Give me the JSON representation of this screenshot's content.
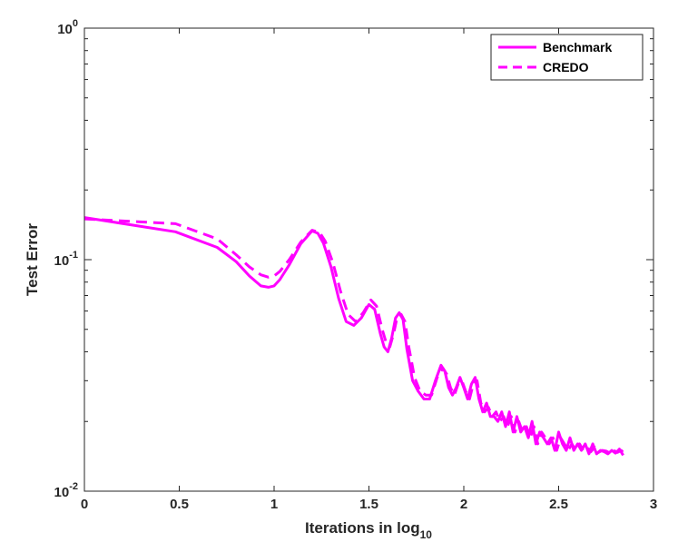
{
  "chart_data": {
    "type": "line",
    "xlabel": "Iterations in log",
    "xlabel_subscript": "10",
    "ylabel": "Test Error",
    "xlim": [
      0,
      3
    ],
    "ylim": [
      0.01,
      1
    ],
    "yscale": "log",
    "grid": false,
    "legend_position": "top-right",
    "x_ticks": [
      0,
      0.5,
      1,
      1.5,
      2,
      2.5,
      3
    ],
    "x_tick_labels": [
      "0",
      "0.5",
      "1",
      "1.5",
      "2",
      "2.5",
      "3"
    ],
    "y_ticks": [
      {
        "value": 0.01,
        "base": "10",
        "exp": "-2"
      },
      {
        "value": 0.1,
        "base": "10",
        "exp": "-1"
      },
      {
        "value": 1,
        "base": "10",
        "exp": "0"
      }
    ],
    "series": [
      {
        "name": "Benchmark",
        "style": "solid",
        "color": "#ff00ff",
        "x": [
          0,
          0.48,
          0.7,
          0.8,
          0.87,
          0.93,
          0.97,
          1.0,
          1.03,
          1.08,
          1.14,
          1.2,
          1.23,
          1.26,
          1.3,
          1.34,
          1.38,
          1.42,
          1.46,
          1.5,
          1.53,
          1.56,
          1.58,
          1.6,
          1.62,
          1.64,
          1.66,
          1.68,
          1.7,
          1.73,
          1.76,
          1.79,
          1.82,
          1.85,
          1.88,
          1.9,
          1.92,
          1.94,
          1.96,
          1.98,
          2.0,
          2.02,
          2.04,
          2.06,
          2.08,
          2.1,
          2.12,
          2.14,
          2.16,
          2.18,
          2.2,
          2.22,
          2.24,
          2.26,
          2.28,
          2.3,
          2.32,
          2.34,
          2.36,
          2.38,
          2.4,
          2.42,
          2.44,
          2.46,
          2.48,
          2.5,
          2.52,
          2.54,
          2.56,
          2.58,
          2.6,
          2.62,
          2.64,
          2.66,
          2.68,
          2.7,
          2.72,
          2.74,
          2.76,
          2.78,
          2.8,
          2.82,
          2.84
        ],
        "values": [
          0.152,
          0.132,
          0.113,
          0.098,
          0.085,
          0.077,
          0.076,
          0.077,
          0.082,
          0.095,
          0.117,
          0.133,
          0.13,
          0.118,
          0.093,
          0.068,
          0.054,
          0.052,
          0.056,
          0.064,
          0.061,
          0.048,
          0.042,
          0.04,
          0.046,
          0.056,
          0.059,
          0.055,
          0.041,
          0.03,
          0.027,
          0.025,
          0.025,
          0.03,
          0.035,
          0.033,
          0.028,
          0.026,
          0.028,
          0.031,
          0.028,
          0.025,
          0.029,
          0.031,
          0.025,
          0.022,
          0.024,
          0.021,
          0.021,
          0.02,
          0.022,
          0.019,
          0.022,
          0.018,
          0.021,
          0.018,
          0.019,
          0.017,
          0.02,
          0.016,
          0.018,
          0.017,
          0.016,
          0.017,
          0.015,
          0.018,
          0.016,
          0.015,
          0.017,
          0.015,
          0.016,
          0.015,
          0.016,
          0.0145,
          0.016,
          0.0145,
          0.015,
          0.0148,
          0.0145,
          0.015,
          0.0146,
          0.0152,
          0.0143
        ]
      },
      {
        "name": "CREDO",
        "style": "dashed",
        "color": "#ff00ff",
        "x": [
          0,
          0.48,
          0.7,
          0.8,
          0.87,
          0.93,
          0.97,
          1.0,
          1.03,
          1.08,
          1.14,
          1.2,
          1.24,
          1.27,
          1.31,
          1.35,
          1.39,
          1.43,
          1.47,
          1.51,
          1.54,
          1.57,
          1.59,
          1.61,
          1.63,
          1.65,
          1.67,
          1.69,
          1.71,
          1.74,
          1.77,
          1.8,
          1.83,
          1.86,
          1.89,
          1.91,
          1.93,
          1.95,
          1.97,
          1.99,
          2.01,
          2.03,
          2.05,
          2.07,
          2.09,
          2.11,
          2.13,
          2.15,
          2.17,
          2.19,
          2.21,
          2.23,
          2.25,
          2.27,
          2.29,
          2.31,
          2.33,
          2.35,
          2.37,
          2.39,
          2.41,
          2.43,
          2.45,
          2.47,
          2.49,
          2.51,
          2.53,
          2.55,
          2.57,
          2.59,
          2.61,
          2.63,
          2.65,
          2.67,
          2.69,
          2.71,
          2.73,
          2.75,
          2.77,
          2.79,
          2.81,
          2.83,
          2.85
        ],
        "values": [
          0.15,
          0.143,
          0.123,
          0.105,
          0.093,
          0.086,
          0.084,
          0.085,
          0.089,
          0.1,
          0.119,
          0.134,
          0.131,
          0.12,
          0.097,
          0.073,
          0.058,
          0.054,
          0.059,
          0.067,
          0.063,
          0.05,
          0.044,
          0.042,
          0.048,
          0.057,
          0.058,
          0.054,
          0.042,
          0.031,
          0.027,
          0.026,
          0.026,
          0.031,
          0.034,
          0.032,
          0.028,
          0.026,
          0.029,
          0.03,
          0.027,
          0.025,
          0.029,
          0.03,
          0.024,
          0.022,
          0.023,
          0.021,
          0.022,
          0.02,
          0.021,
          0.019,
          0.021,
          0.018,
          0.02,
          0.018,
          0.019,
          0.017,
          0.019,
          0.016,
          0.018,
          0.017,
          0.016,
          0.017,
          0.015,
          0.017,
          0.016,
          0.015,
          0.016,
          0.015,
          0.016,
          0.015,
          0.0155,
          0.0148,
          0.0155,
          0.0147,
          0.015,
          0.0149,
          0.0146,
          0.015,
          0.0147,
          0.015,
          0.0144
        ]
      }
    ]
  }
}
